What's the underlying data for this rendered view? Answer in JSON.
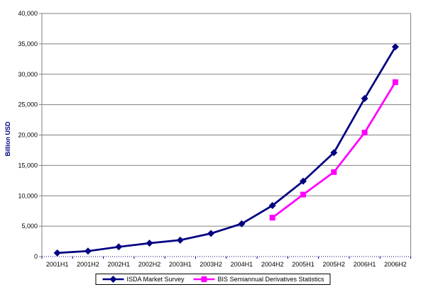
{
  "chart_data": {
    "type": "line",
    "title": "",
    "xlabel": "",
    "ylabel": "Billion USD",
    "ylim": [
      0,
      40000
    ],
    "ytick_step": 5000,
    "grid": "horizontal-gridlines-on",
    "legend_position": "bottom-center",
    "categories": [
      "2001H1",
      "2001H2",
      "2002H1",
      "2002H2",
      "2003H1",
      "2003H2",
      "2004H1",
      "2004H2",
      "2005H1",
      "2005H2",
      "2006H1",
      "2006H2"
    ],
    "series": [
      {
        "name": "ISDA Market Survey",
        "color": "#000080",
        "marker": "diamond",
        "values": [
          600,
          900,
          1600,
          2200,
          2700,
          3800,
          5400,
          8400,
          12400,
          17100,
          26000,
          34500
        ]
      },
      {
        "name": "BIS Semiannual Derivatives Statistics",
        "color": "#FF00FF",
        "marker": "square",
        "values": [
          null,
          null,
          null,
          null,
          null,
          null,
          null,
          6400,
          10200,
          13900,
          20400,
          28700
        ]
      }
    ]
  },
  "colors": {
    "gridline": "#808080",
    "plot_border": "#808080",
    "category_axis": "#000080",
    "tick_label": "#000000",
    "background": "#FFFFFF",
    "legend_border": "#000000"
  }
}
